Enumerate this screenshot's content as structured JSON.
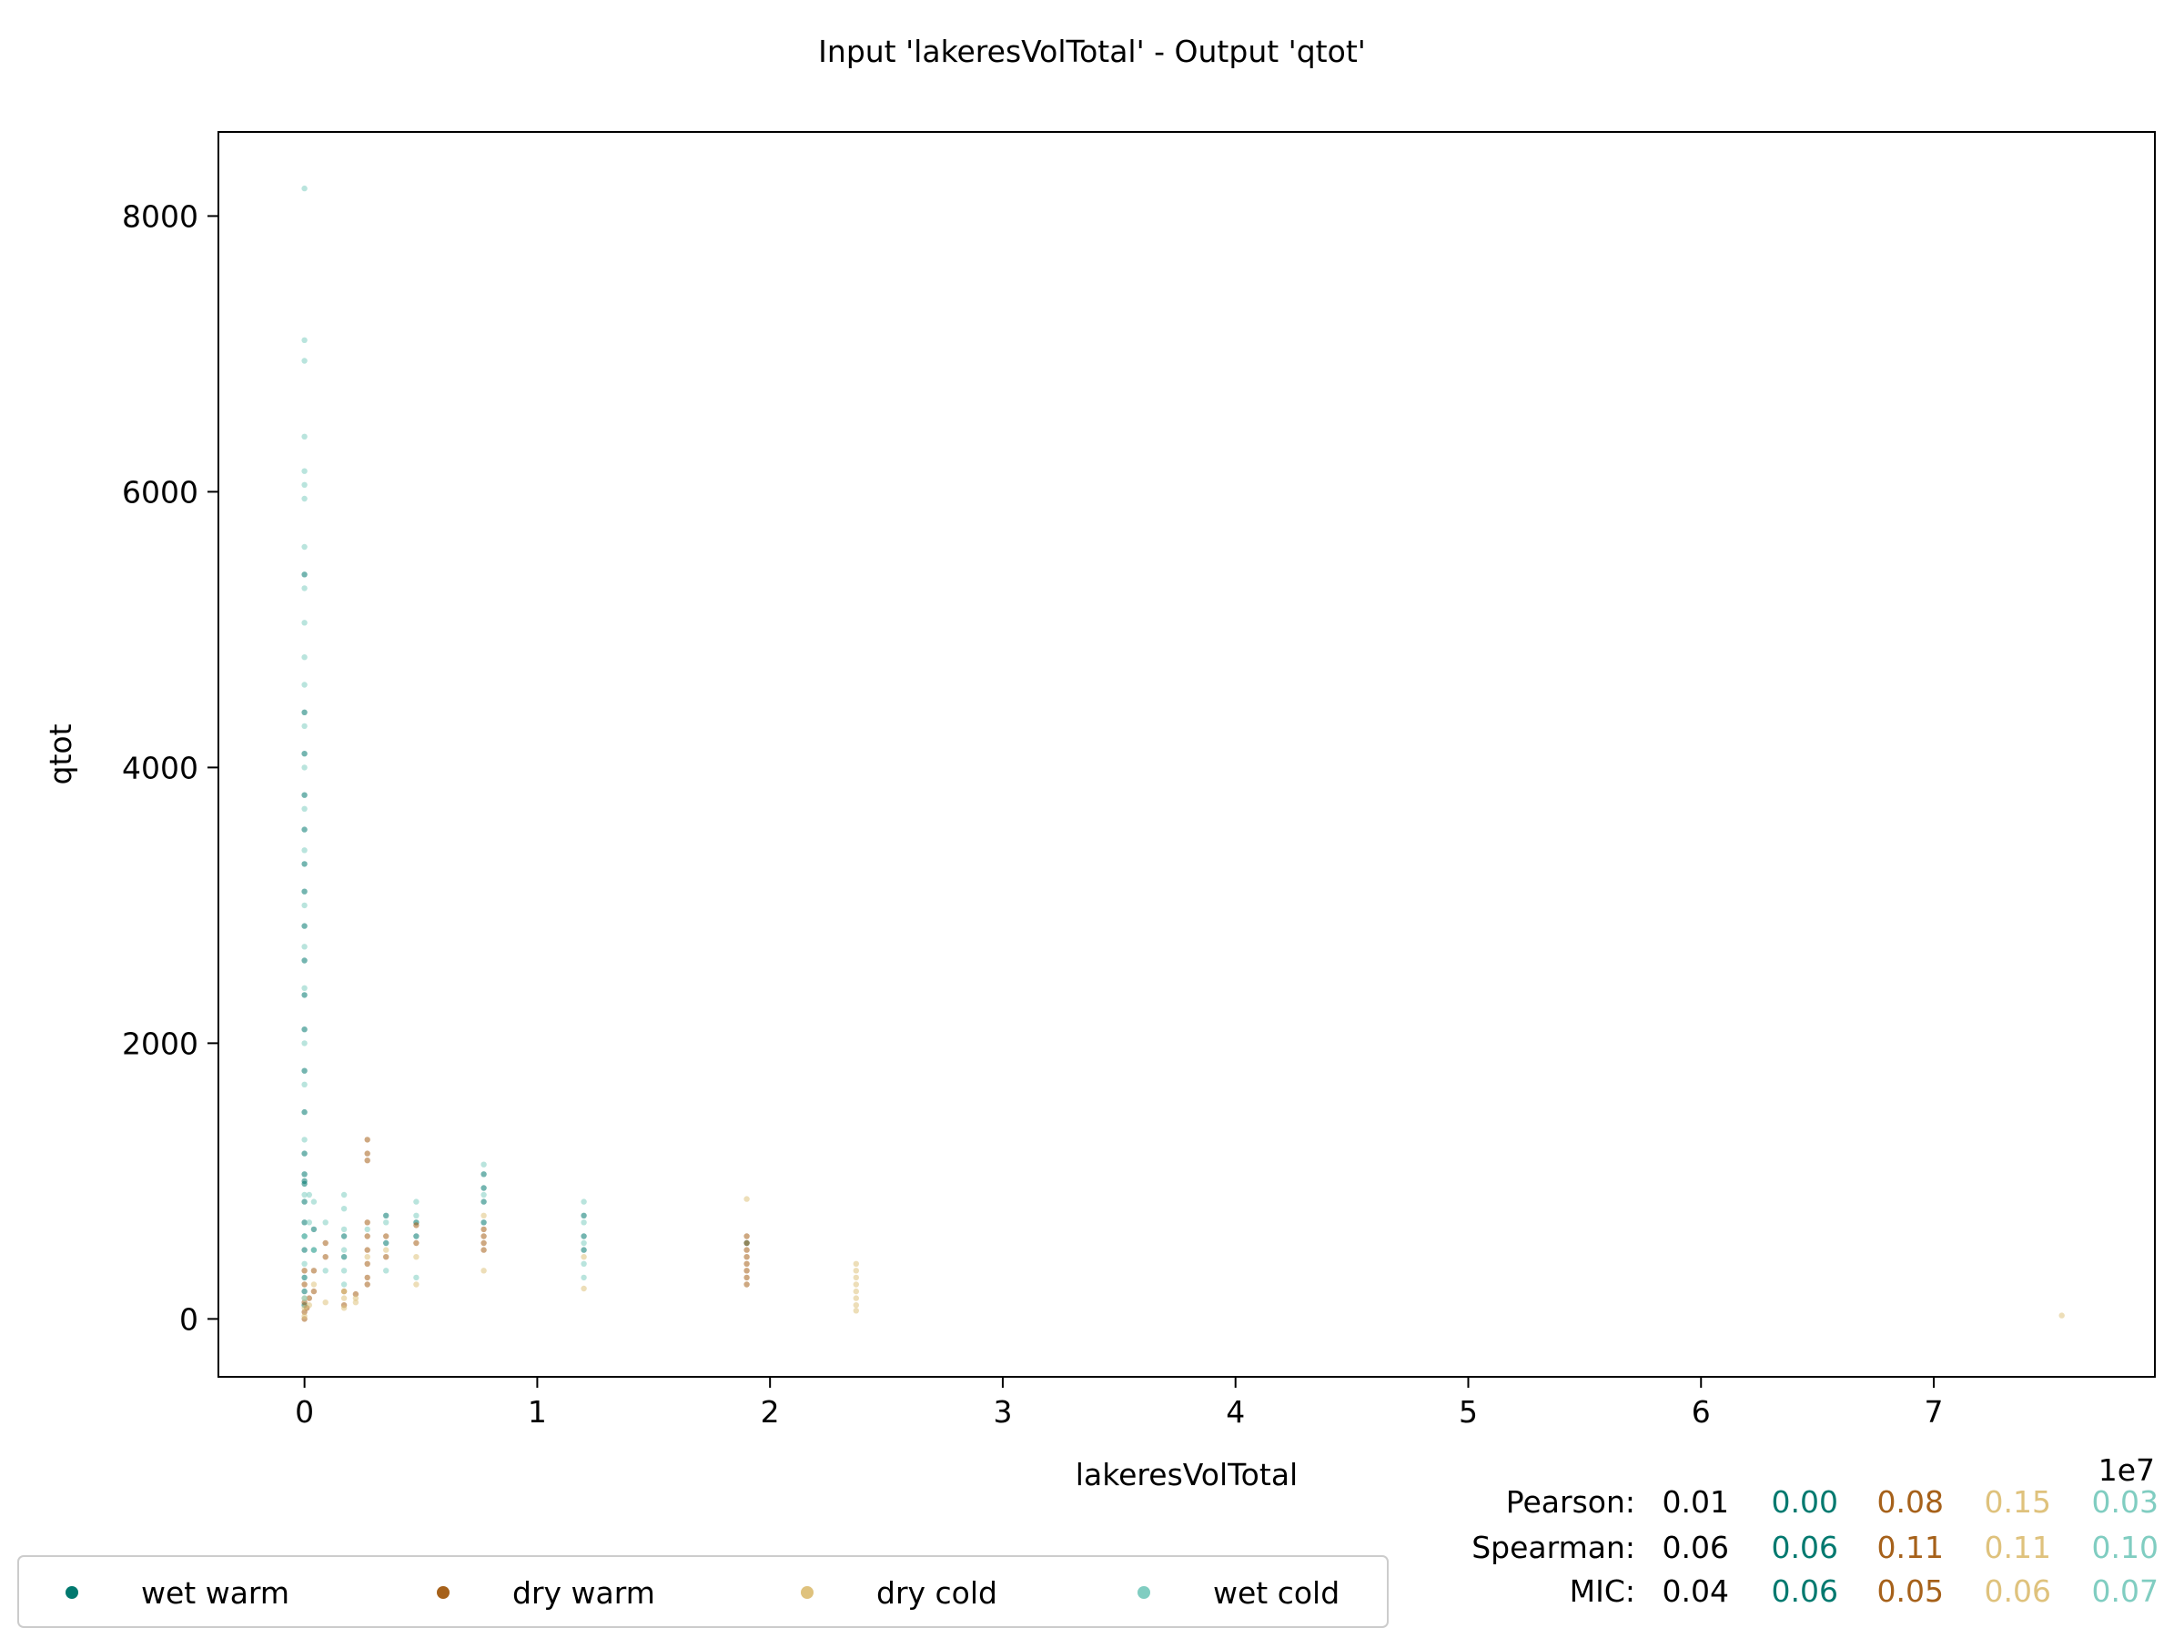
{
  "chart_data": {
    "type": "scatter",
    "title": "Input 'lakeresVolTotal' - Output 'qtot'",
    "xlabel": "lakeresVolTotal",
    "ylabel": "qtot",
    "x_offset_label": "1e7",
    "xlim": [
      -0.37,
      7.95
    ],
    "ylim": [
      -420,
      8610
    ],
    "x_ticks": [
      0,
      1,
      2,
      3,
      4,
      5,
      6,
      7
    ],
    "y_ticks": [
      0,
      2000,
      4000,
      6000,
      8000
    ],
    "grid": false,
    "legend_position": "bottom-left",
    "series": [
      {
        "name": "wet warm",
        "color": "#01796f",
        "points": [
          [
            0.0,
            1000
          ],
          [
            0.0,
            1050
          ],
          [
            0.0,
            980
          ],
          [
            0.0,
            850
          ],
          [
            0.0,
            700
          ],
          [
            0.0,
            1200
          ],
          [
            0.0,
            1500
          ],
          [
            0.0,
            1800
          ],
          [
            0.0,
            2100
          ],
          [
            0.0,
            2350
          ],
          [
            0.0,
            2600
          ],
          [
            0.0,
            2850
          ],
          [
            0.0,
            3100
          ],
          [
            0.0,
            3300
          ],
          [
            0.0,
            3550
          ],
          [
            0.0,
            3800
          ],
          [
            0.0,
            4100
          ],
          [
            0.0,
            4400
          ],
          [
            0.0,
            5400
          ],
          [
            0.0,
            300
          ],
          [
            0.0,
            200
          ],
          [
            0.0,
            100
          ],
          [
            0.0,
            500
          ],
          [
            0.0,
            600
          ],
          [
            0.04,
            500
          ],
          [
            0.04,
            650
          ],
          [
            0.17,
            450
          ],
          [
            0.17,
            600
          ],
          [
            0.35,
            750
          ],
          [
            0.35,
            550
          ],
          [
            0.48,
            700
          ],
          [
            0.48,
            600
          ],
          [
            0.77,
            950
          ],
          [
            0.77,
            1050
          ],
          [
            0.77,
            850
          ],
          [
            0.77,
            700
          ],
          [
            1.2,
            600
          ],
          [
            1.2,
            500
          ],
          [
            1.2,
            750
          ],
          [
            1.9,
            550
          ]
        ]
      },
      {
        "name": "dry warm",
        "color": "#a6611a",
        "points": [
          [
            0.0,
            0
          ],
          [
            0.0,
            50
          ],
          [
            0.0,
            120
          ],
          [
            0.0,
            250
          ],
          [
            0.0,
            350
          ],
          [
            0.01,
            80
          ],
          [
            0.02,
            150
          ],
          [
            0.04,
            200
          ],
          [
            0.04,
            350
          ],
          [
            0.09,
            450
          ],
          [
            0.09,
            550
          ],
          [
            0.17,
            100
          ],
          [
            0.17,
            200
          ],
          [
            0.22,
            180
          ],
          [
            0.27,
            700
          ],
          [
            0.27,
            600
          ],
          [
            0.27,
            500
          ],
          [
            0.27,
            400
          ],
          [
            0.27,
            300
          ],
          [
            0.27,
            250
          ],
          [
            0.27,
            1150
          ],
          [
            0.27,
            1200
          ],
          [
            0.27,
            1300
          ],
          [
            0.35,
            450
          ],
          [
            0.35,
            600
          ],
          [
            0.48,
            550
          ],
          [
            0.48,
            680
          ],
          [
            0.77,
            500
          ],
          [
            0.77,
            600
          ],
          [
            0.77,
            650
          ],
          [
            0.77,
            550
          ],
          [
            1.9,
            600
          ],
          [
            1.9,
            550
          ],
          [
            1.9,
            500
          ],
          [
            1.9,
            450
          ],
          [
            1.9,
            400
          ],
          [
            1.9,
            350
          ],
          [
            1.9,
            300
          ],
          [
            1.9,
            250
          ]
        ]
      },
      {
        "name": "dry cold",
        "color": "#dfc27d",
        "points": [
          [
            0.0,
            20
          ],
          [
            0.0,
            80
          ],
          [
            0.0,
            150
          ],
          [
            0.02,
            100
          ],
          [
            0.04,
            250
          ],
          [
            0.09,
            120
          ],
          [
            0.17,
            80
          ],
          [
            0.17,
            150
          ],
          [
            0.17,
            200
          ],
          [
            0.22,
            120
          ],
          [
            0.22,
            150
          ],
          [
            0.27,
            450
          ],
          [
            0.35,
            500
          ],
          [
            0.48,
            250
          ],
          [
            0.48,
            450
          ],
          [
            0.77,
            350
          ],
          [
            0.77,
            750
          ],
          [
            1.2,
            220
          ],
          [
            1.2,
            450
          ],
          [
            1.9,
            870
          ],
          [
            2.37,
            100
          ],
          [
            2.37,
            150
          ],
          [
            2.37,
            200
          ],
          [
            2.37,
            250
          ],
          [
            2.37,
            300
          ],
          [
            2.37,
            350
          ],
          [
            2.37,
            400
          ],
          [
            2.37,
            60
          ],
          [
            7.55,
            25
          ]
        ]
      },
      {
        "name": "wet cold",
        "color": "#80cdc1",
        "points": [
          [
            0.0,
            8200
          ],
          [
            0.0,
            7100
          ],
          [
            0.0,
            6950
          ],
          [
            0.0,
            6400
          ],
          [
            0.0,
            6150
          ],
          [
            0.0,
            6050
          ],
          [
            0.0,
            5950
          ],
          [
            0.0,
            5600
          ],
          [
            0.0,
            5300
          ],
          [
            0.0,
            5050
          ],
          [
            0.0,
            4800
          ],
          [
            0.0,
            4600
          ],
          [
            0.0,
            4300
          ],
          [
            0.0,
            4000
          ],
          [
            0.0,
            3700
          ],
          [
            0.0,
            3400
          ],
          [
            0.0,
            3000
          ],
          [
            0.0,
            2700
          ],
          [
            0.0,
            2400
          ],
          [
            0.0,
            2000
          ],
          [
            0.0,
            1700
          ],
          [
            0.0,
            1300
          ],
          [
            0.0,
            900
          ],
          [
            0.0,
            600
          ],
          [
            0.0,
            400
          ],
          [
            0.0,
            150
          ],
          [
            0.02,
            900
          ],
          [
            0.02,
            700
          ],
          [
            0.04,
            500
          ],
          [
            0.04,
            850
          ],
          [
            0.09,
            350
          ],
          [
            0.09,
            700
          ],
          [
            0.17,
            900
          ],
          [
            0.17,
            800
          ],
          [
            0.17,
            650
          ],
          [
            0.17,
            500
          ],
          [
            0.17,
            350
          ],
          [
            0.17,
            250
          ],
          [
            0.27,
            650
          ],
          [
            0.35,
            700
          ],
          [
            0.35,
            350
          ],
          [
            0.48,
            850
          ],
          [
            0.48,
            750
          ],
          [
            0.48,
            300
          ],
          [
            0.77,
            1120
          ],
          [
            0.77,
            900
          ],
          [
            1.2,
            850
          ],
          [
            1.2,
            700
          ],
          [
            1.2,
            550
          ],
          [
            1.2,
            400
          ],
          [
            1.2,
            300
          ]
        ]
      }
    ],
    "stats": {
      "rows": [
        {
          "label": "Pearson:",
          "overall": "0.01",
          "values": [
            "0.00",
            "0.08",
            "0.15",
            "0.03"
          ]
        },
        {
          "label": "Spearman:",
          "overall": "0.06",
          "values": [
            "0.06",
            "0.11",
            "0.11",
            "0.10"
          ]
        },
        {
          "label": "MIC:",
          "overall": "0.04",
          "values": [
            "0.06",
            "0.05",
            "0.06",
            "0.07"
          ]
        }
      ]
    }
  }
}
